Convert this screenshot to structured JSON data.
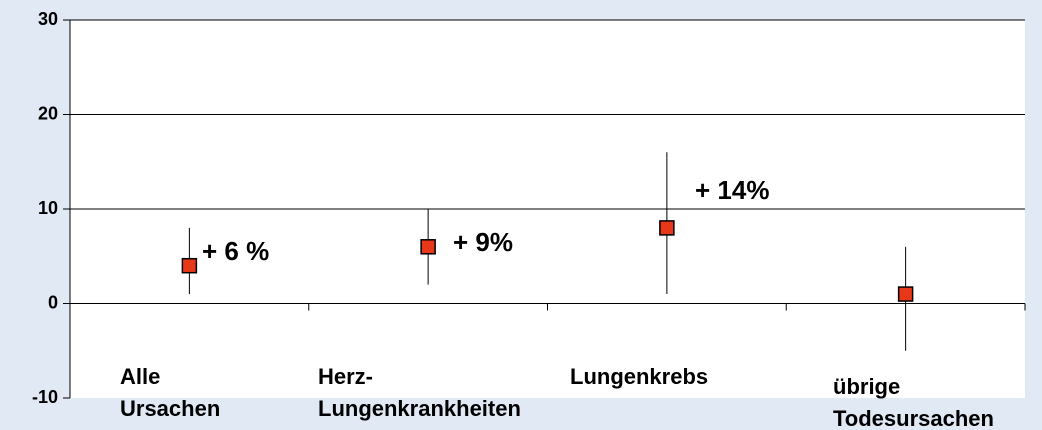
{
  "chart_data": {
    "type": "errorbar",
    "categories": [
      [
        "Alle",
        "Ursachen"
      ],
      [
        "Herz-",
        "Lungenkrankheiten"
      ],
      [
        "Lungenkrebs"
      ],
      [
        "übrige",
        "Todesursachen"
      ]
    ],
    "values": [
      4,
      6,
      8,
      1
    ],
    "low": [
      1,
      2,
      1,
      -5
    ],
    "high": [
      8,
      10,
      16,
      6
    ],
    "color": "#e8381a",
    "annotations": [
      "+ 6 %",
      "+ 9%",
      "+ 14%"
    ],
    "ylim": [
      -10,
      30
    ],
    "yticks": [
      -10,
      0,
      10,
      20,
      30
    ],
    "grid": true
  }
}
